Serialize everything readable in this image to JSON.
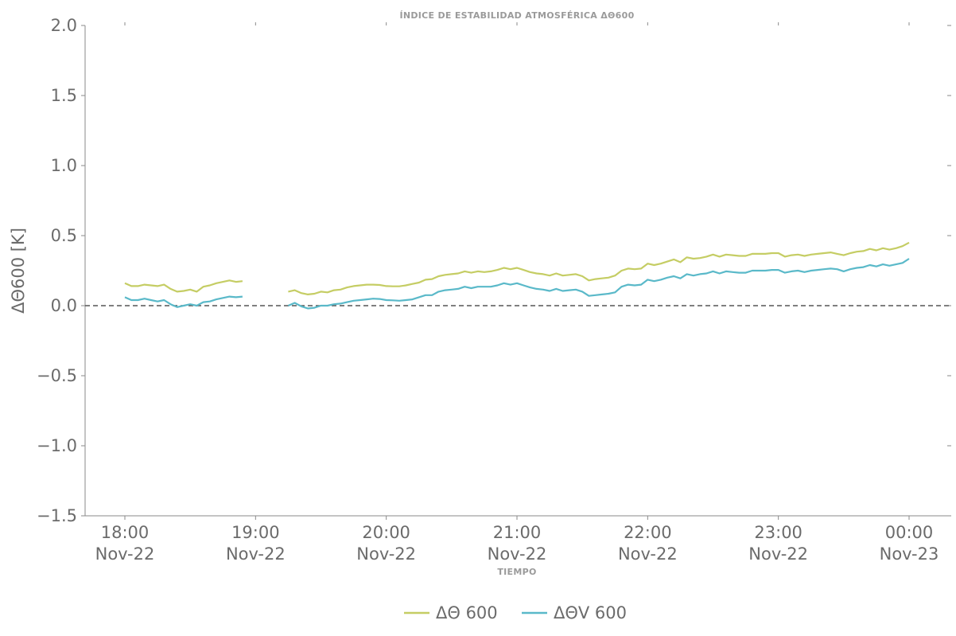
{
  "chart_data": {
    "type": "line",
    "title": "ÍNDICE DE ESTABILIDAD ATMOSFÉRICA ΔΘ600",
    "xlabel": "TIEMPO",
    "ylabel": "ΔΘ600 [K]",
    "ylim": [
      -1.5,
      2.0
    ],
    "xlim": [
      "2023-11-22 17:42",
      "2023-11-23 00:20"
    ],
    "yticks": [
      2.0,
      1.5,
      1.0,
      0.5,
      0.0,
      -0.5,
      -1.0,
      -1.5
    ],
    "ytick_labels": [
      "2.0",
      "1.5",
      "1.0",
      "0.5",
      "0.0",
      "−0.5",
      "−1.0",
      "−1.5"
    ],
    "xticks": [
      {
        "time": "18:00",
        "date": "Nov-22"
      },
      {
        "time": "19:00",
        "date": "Nov-22"
      },
      {
        "time": "20:00",
        "date": "Nov-22"
      },
      {
        "time": "21:00",
        "date": "Nov-22"
      },
      {
        "time": "22:00",
        "date": "Nov-22"
      },
      {
        "time": "23:00",
        "date": "Nov-22"
      },
      {
        "time": "00:00",
        "date": "Nov-23"
      }
    ],
    "reference_line": {
      "y": 0.0,
      "style": "dashed"
    },
    "grid": false,
    "legend_position": "bottom-center",
    "series": [
      {
        "name": "ΔΘ 600",
        "color": "#c5cd64",
        "points": [
          [
            "18:00",
            0.16
          ],
          [
            "18:03",
            0.14
          ],
          [
            "18:06",
            0.14
          ],
          [
            "18:09",
            0.15
          ],
          [
            "18:12",
            0.145
          ],
          [
            "18:15",
            0.14
          ],
          [
            "18:18",
            0.15
          ],
          [
            "18:21",
            0.12
          ],
          [
            "18:24",
            0.1
          ],
          [
            "18:27",
            0.105
          ],
          [
            "18:30",
            0.115
          ],
          [
            "18:33",
            0.1
          ],
          [
            "18:36",
            0.135
          ],
          [
            "18:39",
            0.145
          ],
          [
            "18:42",
            0.16
          ],
          [
            "18:45",
            0.17
          ],
          [
            "18:48",
            0.18
          ],
          [
            "18:51",
            0.17
          ],
          [
            "18:54",
            0.175
          ],
          [
            "19:15",
            0.1
          ],
          [
            "19:18",
            0.11
          ],
          [
            "19:21",
            0.09
          ],
          [
            "19:24",
            0.08
          ],
          [
            "19:27",
            0.085
          ],
          [
            "19:30",
            0.1
          ],
          [
            "19:33",
            0.095
          ],
          [
            "19:36",
            0.11
          ],
          [
            "19:39",
            0.115
          ],
          [
            "19:42",
            0.13
          ],
          [
            "19:45",
            0.14
          ],
          [
            "19:48",
            0.145
          ],
          [
            "19:51",
            0.15
          ],
          [
            "19:54",
            0.15
          ],
          [
            "19:57",
            0.148
          ],
          [
            "20:00",
            0.14
          ],
          [
            "20:03",
            0.138
          ],
          [
            "20:06",
            0.138
          ],
          [
            "20:09",
            0.145
          ],
          [
            "20:12",
            0.155
          ],
          [
            "20:15",
            0.165
          ],
          [
            "20:18",
            0.185
          ],
          [
            "20:21",
            0.19
          ],
          [
            "20:24",
            0.21
          ],
          [
            "20:27",
            0.22
          ],
          [
            "20:30",
            0.225
          ],
          [
            "20:33",
            0.23
          ],
          [
            "20:36",
            0.245
          ],
          [
            "20:39",
            0.235
          ],
          [
            "20:42",
            0.245
          ],
          [
            "20:45",
            0.24
          ],
          [
            "20:48",
            0.245
          ],
          [
            "20:51",
            0.255
          ],
          [
            "20:54",
            0.27
          ],
          [
            "20:57",
            0.26
          ],
          [
            "21:00",
            0.27
          ],
          [
            "21:03",
            0.255
          ],
          [
            "21:06",
            0.24
          ],
          [
            "21:09",
            0.23
          ],
          [
            "21:12",
            0.225
          ],
          [
            "21:15",
            0.215
          ],
          [
            "21:18",
            0.23
          ],
          [
            "21:21",
            0.215
          ],
          [
            "21:24",
            0.22
          ],
          [
            "21:27",
            0.225
          ],
          [
            "21:30",
            0.21
          ],
          [
            "21:33",
            0.18
          ],
          [
            "21:36",
            0.19
          ],
          [
            "21:39",
            0.195
          ],
          [
            "21:42",
            0.2
          ],
          [
            "21:45",
            0.215
          ],
          [
            "21:48",
            0.25
          ],
          [
            "21:51",
            0.265
          ],
          [
            "21:54",
            0.26
          ],
          [
            "21:57",
            0.265
          ],
          [
            "22:00",
            0.3
          ],
          [
            "22:03",
            0.29
          ],
          [
            "22:06",
            0.3
          ],
          [
            "22:09",
            0.315
          ],
          [
            "22:12",
            0.33
          ],
          [
            "22:15",
            0.31
          ],
          [
            "22:18",
            0.345
          ],
          [
            "22:21",
            0.335
          ],
          [
            "22:24",
            0.34
          ],
          [
            "22:27",
            0.35
          ],
          [
            "22:30",
            0.365
          ],
          [
            "22:33",
            0.35
          ],
          [
            "22:36",
            0.365
          ],
          [
            "22:39",
            0.36
          ],
          [
            "22:42",
            0.355
          ],
          [
            "22:45",
            0.355
          ],
          [
            "22:48",
            0.37
          ],
          [
            "22:51",
            0.37
          ],
          [
            "22:54",
            0.37
          ],
          [
            "22:57",
            0.375
          ],
          [
            "23:00",
            0.375
          ],
          [
            "23:03",
            0.35
          ],
          [
            "23:06",
            0.36
          ],
          [
            "23:09",
            0.365
          ],
          [
            "23:12",
            0.355
          ],
          [
            "23:15",
            0.365
          ],
          [
            "23:18",
            0.37
          ],
          [
            "23:21",
            0.375
          ],
          [
            "23:24",
            0.38
          ],
          [
            "23:27",
            0.37
          ],
          [
            "23:30",
            0.36
          ],
          [
            "23:33",
            0.375
          ],
          [
            "23:36",
            0.385
          ],
          [
            "23:39",
            0.39
          ],
          [
            "23:42",
            0.405
          ],
          [
            "23:45",
            0.395
          ],
          [
            "23:48",
            0.41
          ],
          [
            "23:51",
            0.4
          ],
          [
            "23:54",
            0.41
          ],
          [
            "23:57",
            0.425
          ],
          [
            "00:00",
            0.45
          ]
        ]
      },
      {
        "name": "ΔΘV 600",
        "color": "#5ab9c9",
        "points": [
          [
            "18:00",
            0.06
          ],
          [
            "18:03",
            0.04
          ],
          [
            "18:06",
            0.04
          ],
          [
            "18:09",
            0.05
          ],
          [
            "18:12",
            0.04
          ],
          [
            "18:15",
            0.03
          ],
          [
            "18:18",
            0.04
          ],
          [
            "18:21",
            0.01
          ],
          [
            "18:24",
            -0.01
          ],
          [
            "18:27",
            0.0
          ],
          [
            "18:30",
            0.01
          ],
          [
            "18:33",
            0.0
          ],
          [
            "18:36",
            0.025
          ],
          [
            "18:39",
            0.03
          ],
          [
            "18:42",
            0.045
          ],
          [
            "18:45",
            0.055
          ],
          [
            "18:48",
            0.065
          ],
          [
            "18:51",
            0.06
          ],
          [
            "18:54",
            0.065
          ],
          [
            "19:15",
            0.0
          ],
          [
            "19:18",
            0.02
          ],
          [
            "19:21",
            -0.005
          ],
          [
            "19:24",
            -0.02
          ],
          [
            "19:27",
            -0.015
          ],
          [
            "19:30",
            0.0
          ],
          [
            "19:33",
            0.0
          ],
          [
            "19:36",
            0.01
          ],
          [
            "19:39",
            0.015
          ],
          [
            "19:42",
            0.025
          ],
          [
            "19:45",
            0.035
          ],
          [
            "19:48",
            0.04
          ],
          [
            "19:51",
            0.045
          ],
          [
            "19:54",
            0.05
          ],
          [
            "19:57",
            0.048
          ],
          [
            "20:00",
            0.04
          ],
          [
            "20:03",
            0.038
          ],
          [
            "20:06",
            0.035
          ],
          [
            "20:09",
            0.04
          ],
          [
            "20:12",
            0.045
          ],
          [
            "20:15",
            0.06
          ],
          [
            "20:18",
            0.075
          ],
          [
            "20:21",
            0.075
          ],
          [
            "20:24",
            0.1
          ],
          [
            "20:27",
            0.11
          ],
          [
            "20:30",
            0.115
          ],
          [
            "20:33",
            0.12
          ],
          [
            "20:36",
            0.135
          ],
          [
            "20:39",
            0.125
          ],
          [
            "20:42",
            0.135
          ],
          [
            "20:45",
            0.135
          ],
          [
            "20:48",
            0.135
          ],
          [
            "20:51",
            0.145
          ],
          [
            "20:54",
            0.16
          ],
          [
            "20:57",
            0.15
          ],
          [
            "21:00",
            0.16
          ],
          [
            "21:03",
            0.145
          ],
          [
            "21:06",
            0.13
          ],
          [
            "21:09",
            0.12
          ],
          [
            "21:12",
            0.115
          ],
          [
            "21:15",
            0.105
          ],
          [
            "21:18",
            0.12
          ],
          [
            "21:21",
            0.105
          ],
          [
            "21:24",
            0.11
          ],
          [
            "21:27",
            0.115
          ],
          [
            "21:30",
            0.1
          ],
          [
            "21:33",
            0.07
          ],
          [
            "21:36",
            0.075
          ],
          [
            "21:39",
            0.08
          ],
          [
            "21:42",
            0.085
          ],
          [
            "21:45",
            0.095
          ],
          [
            "21:48",
            0.135
          ],
          [
            "21:51",
            0.15
          ],
          [
            "21:54",
            0.145
          ],
          [
            "21:57",
            0.15
          ],
          [
            "22:00",
            0.185
          ],
          [
            "22:03",
            0.175
          ],
          [
            "22:06",
            0.185
          ],
          [
            "22:09",
            0.2
          ],
          [
            "22:12",
            0.21
          ],
          [
            "22:15",
            0.195
          ],
          [
            "22:18",
            0.225
          ],
          [
            "22:21",
            0.215
          ],
          [
            "22:24",
            0.225
          ],
          [
            "22:27",
            0.23
          ],
          [
            "22:30",
            0.245
          ],
          [
            "22:33",
            0.23
          ],
          [
            "22:36",
            0.245
          ],
          [
            "22:39",
            0.24
          ],
          [
            "22:42",
            0.235
          ],
          [
            "22:45",
            0.235
          ],
          [
            "22:48",
            0.25
          ],
          [
            "22:51",
            0.25
          ],
          [
            "22:54",
            0.25
          ],
          [
            "22:57",
            0.255
          ],
          [
            "23:00",
            0.255
          ],
          [
            "23:03",
            0.235
          ],
          [
            "23:06",
            0.245
          ],
          [
            "23:09",
            0.25
          ],
          [
            "23:12",
            0.24
          ],
          [
            "23:15",
            0.25
          ],
          [
            "23:18",
            0.255
          ],
          [
            "23:21",
            0.26
          ],
          [
            "23:24",
            0.265
          ],
          [
            "23:27",
            0.26
          ],
          [
            "23:30",
            0.245
          ],
          [
            "23:33",
            0.26
          ],
          [
            "23:36",
            0.27
          ],
          [
            "23:39",
            0.275
          ],
          [
            "23:42",
            0.29
          ],
          [
            "23:45",
            0.28
          ],
          [
            "23:48",
            0.295
          ],
          [
            "23:51",
            0.285
          ],
          [
            "23:54",
            0.295
          ],
          [
            "23:57",
            0.305
          ],
          [
            "00:00",
            0.335
          ]
        ]
      }
    ]
  }
}
